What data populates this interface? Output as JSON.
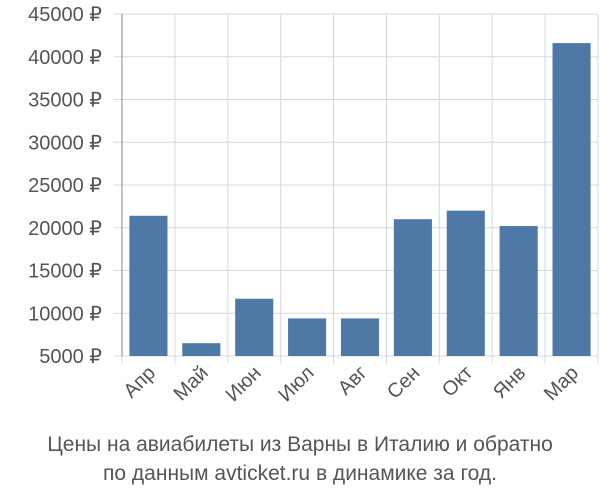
{
  "chart_data": {
    "type": "bar",
    "categories": [
      "Апр",
      "Май",
      "Июн",
      "Июл",
      "Авг",
      "Сен",
      "Окт",
      "Янв",
      "Мар"
    ],
    "values": [
      21400,
      6500,
      11700,
      9400,
      9400,
      21000,
      22000,
      20200,
      41600
    ],
    "ylim": [
      5000,
      45000
    ],
    "yticks": [
      5000,
      10000,
      15000,
      20000,
      25000,
      30000,
      35000,
      40000,
      45000
    ],
    "ytick_suffix": " ₽",
    "grid": true,
    "bar_color": "#4e79a7",
    "title_lines": [
      "Цены на авиабилеты из Варны в Италию и обратно",
      "по данным avticket.ru в динамике за год."
    ]
  }
}
